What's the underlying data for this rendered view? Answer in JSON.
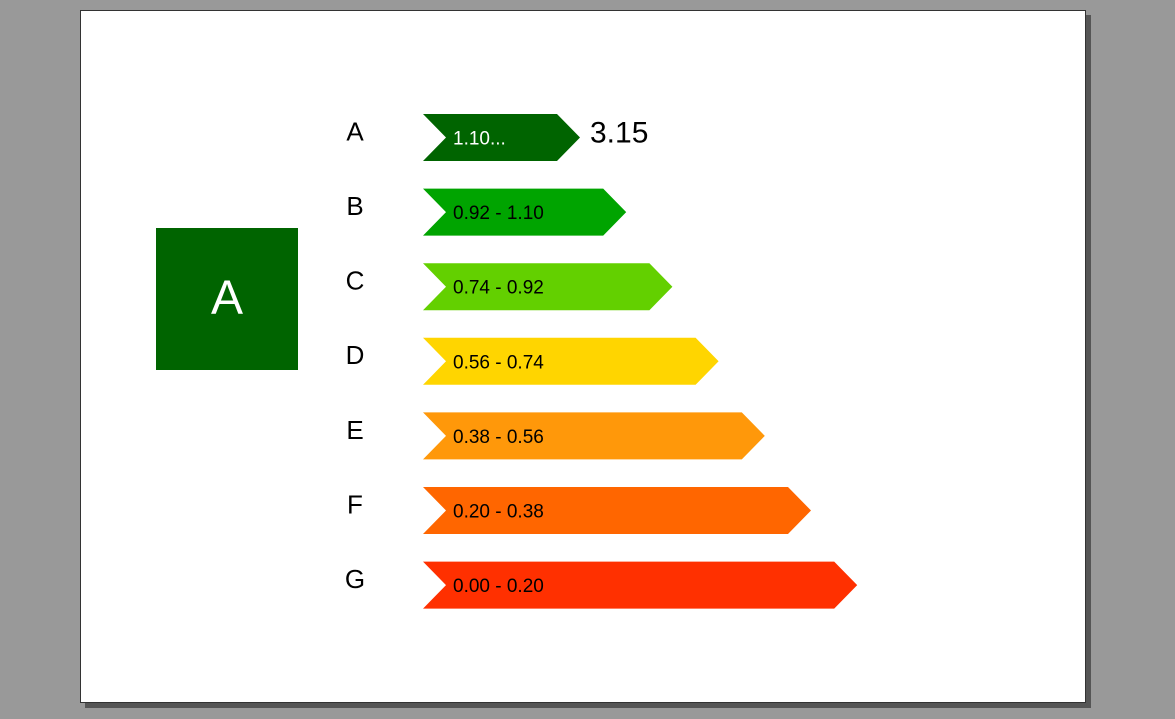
{
  "rating": {
    "letter": "A",
    "color": "#006400",
    "text_color": "#ffffff"
  },
  "value": "3.15",
  "classes": [
    {
      "letter": "A",
      "range": "1.10...",
      "color": "#006400",
      "text_color": "#ffffff"
    },
    {
      "letter": "B",
      "range": "0.92 - 1.10",
      "color": "#00a400",
      "text_color": "#000000"
    },
    {
      "letter": "C",
      "range": "0.74 - 0.92",
      "color": "#63d000",
      "text_color": "#000000"
    },
    {
      "letter": "D",
      "range": "0.56 - 0.74",
      "color": "#ffd500",
      "text_color": "#000000"
    },
    {
      "letter": "E",
      "range": "0.38 - 0.56",
      "color": "#ff980a",
      "text_color": "#000000"
    },
    {
      "letter": "F",
      "range": "0.20 - 0.38",
      "color": "#ff6600",
      "text_color": "#000000"
    },
    {
      "letter": "G",
      "range": "0.00 - 0.20",
      "color": "#ff3000",
      "text_color": "#000000"
    }
  ]
}
